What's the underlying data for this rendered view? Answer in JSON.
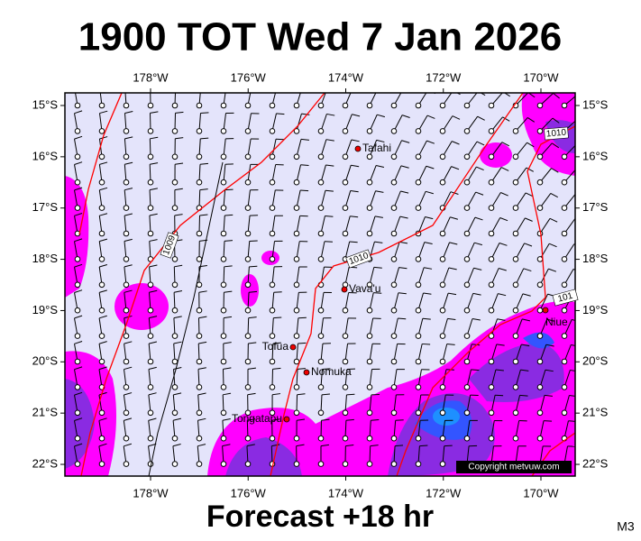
{
  "header": {
    "title": "1900 TOT Wed 7 Jan 2026"
  },
  "map": {
    "xticks": [
      {
        "value": -178,
        "label": "178°W"
      },
      {
        "value": -176,
        "label": "176°W"
      },
      {
        "value": -174,
        "label": "174°W"
      },
      {
        "value": -172,
        "label": "172°W"
      },
      {
        "value": -170,
        "label": "170°W"
      }
    ],
    "yticks": [
      {
        "value": -15,
        "label": "15°S"
      },
      {
        "value": -16,
        "label": "16°S"
      },
      {
        "value": -17,
        "label": "17°S"
      },
      {
        "value": -18,
        "label": "18°S"
      },
      {
        "value": -19,
        "label": "19°S"
      },
      {
        "value": -20,
        "label": "20°S"
      },
      {
        "value": -21,
        "label": "21°S"
      },
      {
        "value": -22,
        "label": "22°S"
      }
    ],
    "places": [
      "Tafahi",
      "Vava'u",
      "Tofua",
      "Nomuka",
      "Tongatapu",
      "Niue"
    ],
    "isobars": [
      "1009",
      "1010",
      "1010",
      "101"
    ],
    "copyright": "Copyright metvuw.com"
  },
  "footer": {
    "forecast": "Forecast +18 hr",
    "code": "M3"
  }
}
